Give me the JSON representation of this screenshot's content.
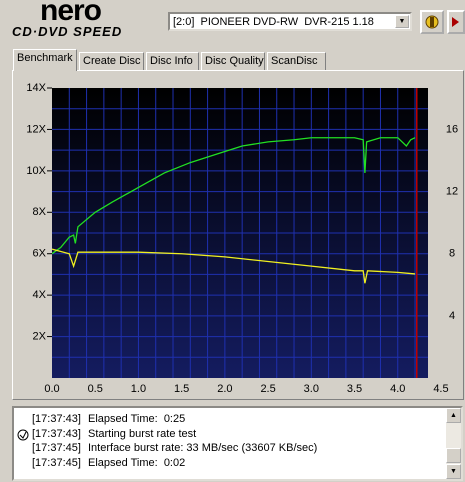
{
  "app": {
    "logo": "nero",
    "logo_sub": "CD·DVD SPEED",
    "drive": "[2:0]  PIONEER DVD-RW  DVR-215 1.18",
    "tabs": [
      "Benchmark",
      "Create Disc",
      "Disc Info",
      "Disc Quality",
      "ScanDisc"
    ],
    "log": [
      {
        "time": "[17:37:43]",
        "message": "Elapsed Time:  0:25"
      },
      {
        "time": "[17:37:43]",
        "message": "Starting burst rate test"
      },
      {
        "time": "[17:37:45]",
        "message": "Interface burst rate: 33 MB/sec (33607 KB/sec)"
      },
      {
        "time": "[17:37:45]",
        "message": "Elapsed Time:  0:02"
      }
    ]
  },
  "chart_data": {
    "type": "line",
    "xlim": [
      0,
      4.35
    ],
    "xticks": [
      {
        "value": 0,
        "label": "0.0"
      },
      0.5,
      {
        "value": 1,
        "label": "1.0"
      },
      1.5,
      {
        "value": 2,
        "label": "2.0"
      },
      2.5,
      {
        "value": 3,
        "label": "3.0"
      },
      3.5,
      {
        "value": 4,
        "label": "4.0"
      },
      4.5
    ],
    "ylim": [
      0,
      14
    ],
    "yticks": [
      {
        "value": 2,
        "label": "2X"
      },
      {
        "value": 4,
        "label": "4X"
      },
      {
        "value": 6,
        "label": "6X"
      },
      {
        "value": 8,
        "label": "8X"
      },
      {
        "value": 10,
        "label": "10X"
      },
      {
        "value": 12,
        "label": "12X"
      },
      {
        "value": 14,
        "label": "14X"
      }
    ],
    "y2lim": [
      0,
      18.67
    ],
    "y2ticks": [
      4,
      8,
      12,
      16
    ],
    "grid": true,
    "marker": {
      "x": 4.22,
      "color": "#c00000"
    },
    "series": [
      {
        "color": "#22e022",
        "x": [
          0,
          0.1,
          0.2,
          0.25,
          0.27,
          0.3,
          0.5,
          0.7,
          1.0,
          1.3,
          1.6,
          1.9,
          2.2,
          2.5,
          2.8,
          3.0,
          3.3,
          3.5,
          3.6,
          3.62,
          3.64,
          3.8,
          4.0,
          4.1,
          4.15,
          4.2
        ],
        "values": [
          6.0,
          6.3,
          6.8,
          6.9,
          6.5,
          7.3,
          8.0,
          8.5,
          9.2,
          9.9,
          10.4,
          10.8,
          11.2,
          11.4,
          11.5,
          11.6,
          11.6,
          11.6,
          11.5,
          9.9,
          11.4,
          11.6,
          11.6,
          11.2,
          11.5,
          11.6
        ]
      },
      {
        "color": "#f0f020",
        "axis": "y2",
        "x": [
          0,
          0.2,
          0.25,
          0.3,
          1.0,
          1.5,
          2.0,
          2.5,
          3.0,
          3.5,
          3.6,
          3.62,
          3.65,
          4.0,
          4.2
        ],
        "values": [
          8.3,
          8.0,
          7.2,
          8.1,
          8.1,
          8.0,
          7.8,
          7.5,
          7.2,
          6.9,
          6.9,
          6.1,
          6.9,
          6.8,
          6.7
        ]
      }
    ]
  }
}
